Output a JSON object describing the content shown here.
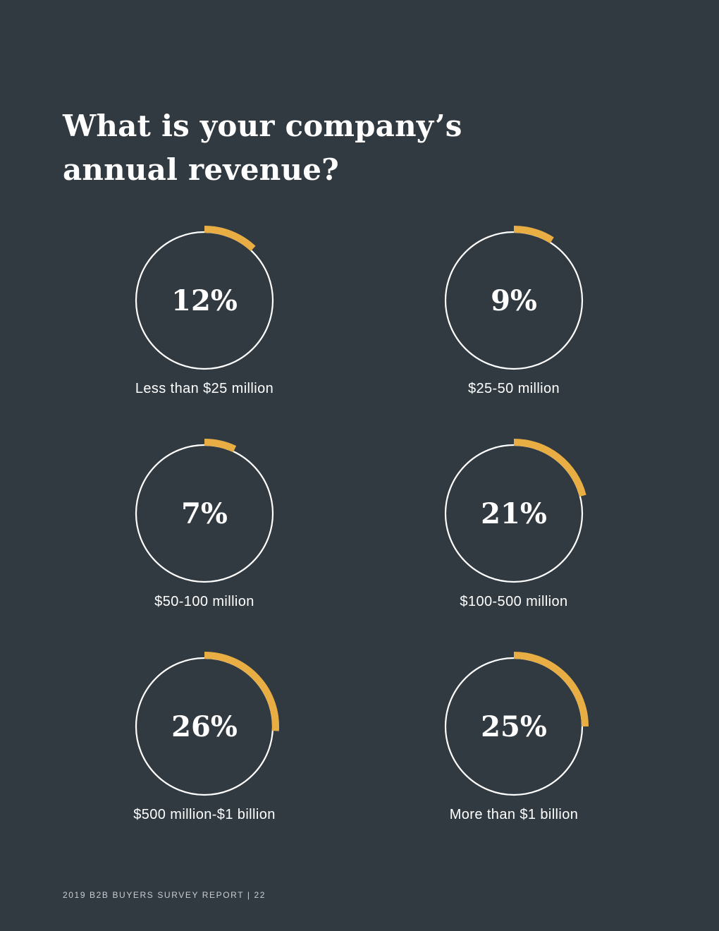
{
  "title_lines": [
    "What is your company’s",
    "annual revenue?"
  ],
  "footer": "2019 B2B BUYERS SURVEY REPORT | 22",
  "colors": {
    "background": "#313a41",
    "accent": "#e8ae43",
    "ring": "#ffffff",
    "text": "#ffffff"
  },
  "chart_data": {
    "type": "pie",
    "title": "What is your company’s annual revenue?",
    "categories": [
      "Less than $25 million",
      "$25-50 million",
      "$50-100 million",
      "$100-500 million",
      "$500 million-$1 billion",
      "More than $1 billion"
    ],
    "values": [
      12,
      9,
      7,
      21,
      26,
      25
    ],
    "value_labels": [
      "12%",
      "9%",
      "7%",
      "21%",
      "26%",
      "25%"
    ],
    "unit": "%",
    "layout": "grid of 3 rows x 2 columns of progress rings"
  }
}
